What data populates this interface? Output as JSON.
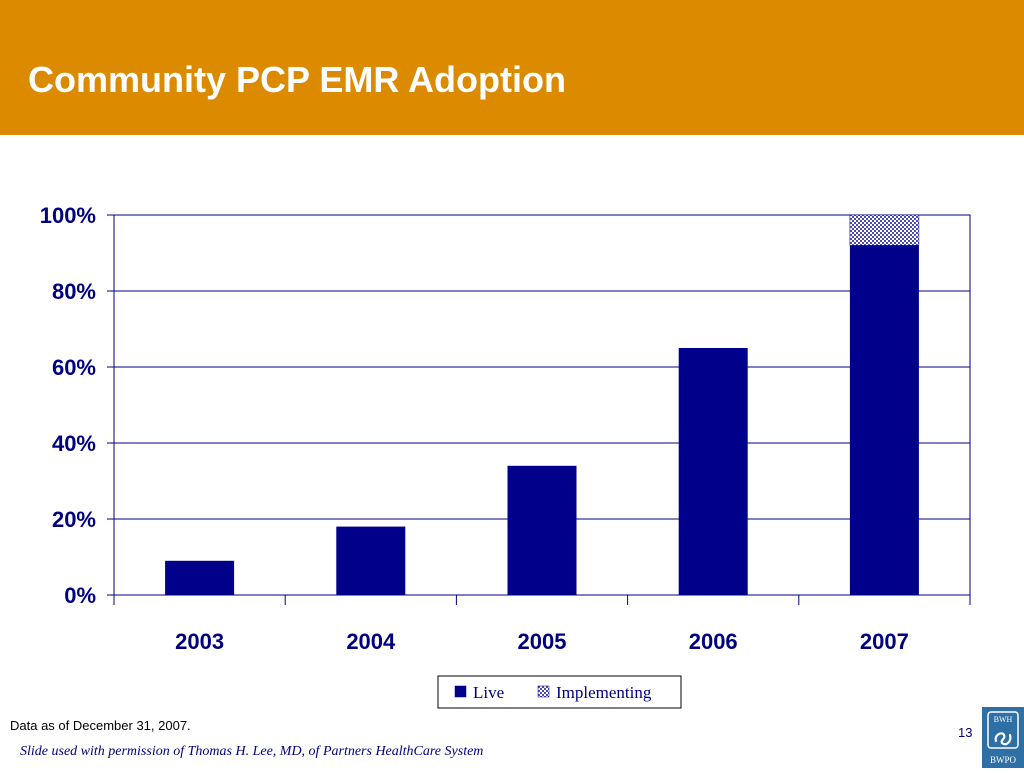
{
  "slide": {
    "title": "Community PCP EMR Adoption",
    "footnote": "Data as of December 31, 2007.",
    "credit": "Slide used with permission of Thomas H. Lee, MD, of Partners HealthCare System",
    "page_number": "13",
    "logo": {
      "top_text": "BWH",
      "bottom_text": "BWPO"
    }
  },
  "colors": {
    "header": "#DC8A00",
    "live": "#00008B",
    "implementing": "#9999DD",
    "axis": "#000080",
    "logo": "#2E6FA6"
  },
  "chart_data": {
    "type": "bar",
    "stacked": true,
    "categories": [
      "2003",
      "2004",
      "2005",
      "2006",
      "2007"
    ],
    "series": [
      {
        "name": "Live",
        "values": [
          9,
          18,
          34,
          65,
          92
        ]
      },
      {
        "name": "Implementing",
        "values": [
          0,
          0,
          0,
          0,
          8
        ]
      }
    ],
    "yticks": [
      "0%",
      "20%",
      "40%",
      "60%",
      "80%",
      "100%"
    ],
    "ylim": [
      0,
      100
    ],
    "grid": true,
    "legend_position": "bottom"
  }
}
